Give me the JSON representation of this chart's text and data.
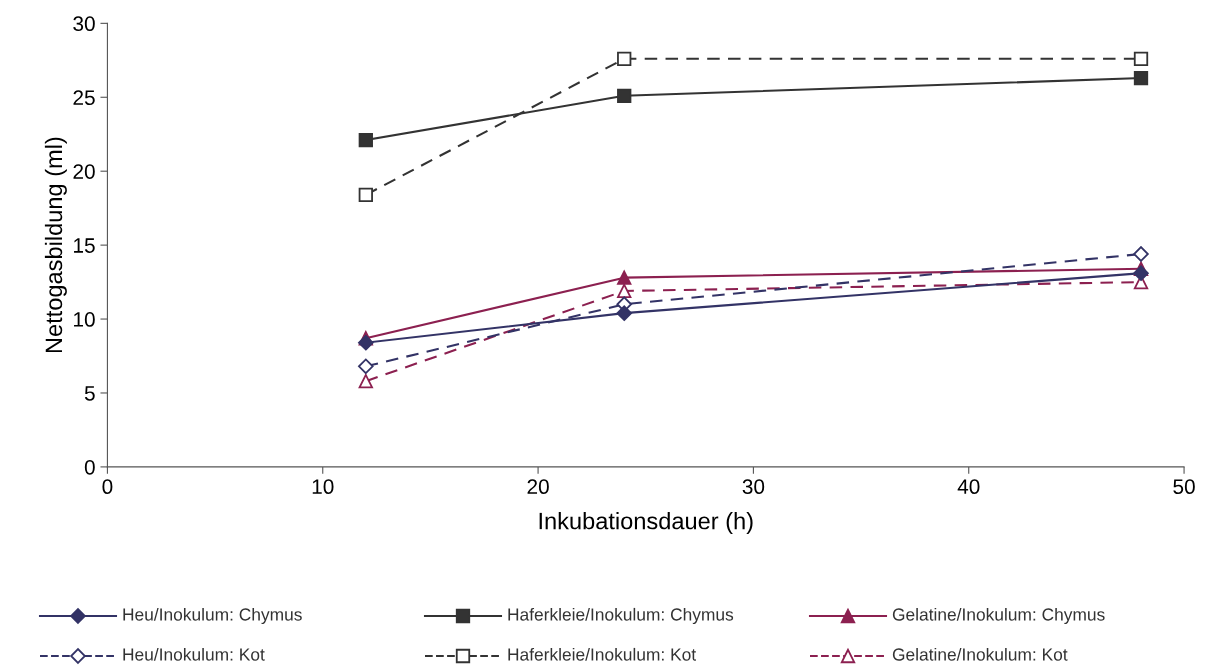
{
  "chart_data": {
    "type": "line",
    "xlabel": "Inkubationsdauer (h)",
    "ylabel": "Nettogasbildung (ml)",
    "xlim": [
      0,
      50
    ],
    "xticks": [
      0,
      10,
      20,
      30,
      40,
      50
    ],
    "ylim": [
      0,
      30
    ],
    "yticks": [
      0,
      5,
      10,
      15,
      20,
      25,
      30
    ],
    "grid": false,
    "legend": "bottom",
    "series": [
      {
        "name": "Heu/Inokulum: Chymus",
        "color": "#333366",
        "marker": "diamond",
        "line_style": "solid",
        "x": [
          12,
          24,
          48
        ],
        "values": [
          8.4,
          10.4,
          13.1
        ]
      },
      {
        "name": "Heu/Inokulum: Kot",
        "color": "#333366",
        "marker": "diamond",
        "line_style": "dashed",
        "x": [
          12,
          24,
          48
        ],
        "values": [
          6.8,
          11.0,
          14.4
        ]
      },
      {
        "name": "Haferkleie/Inokulum: Chymus",
        "color": "#333333",
        "marker": "square",
        "line_style": "solid",
        "x": [
          12,
          24,
          48
        ],
        "values": [
          22.1,
          25.1,
          26.3
        ]
      },
      {
        "name": "Haferkleie/Inokulum: Kot",
        "color": "#333333",
        "marker": "square",
        "line_style": "dashed",
        "x": [
          12,
          24,
          48
        ],
        "values": [
          18.4,
          27.6,
          27.6
        ]
      },
      {
        "name": "Gelatine/Inokulum: Chymus",
        "color": "#8c2050",
        "marker": "triangle",
        "line_style": "solid",
        "x": [
          12,
          24,
          48
        ],
        "values": [
          8.7,
          12.8,
          13.4
        ]
      },
      {
        "name": "Gelatine/Inokulum: Kot",
        "color": "#8c2050",
        "marker": "triangle",
        "line_style": "dashed",
        "x": [
          12,
          24,
          48
        ],
        "values": [
          5.8,
          11.9,
          12.5
        ]
      }
    ]
  }
}
